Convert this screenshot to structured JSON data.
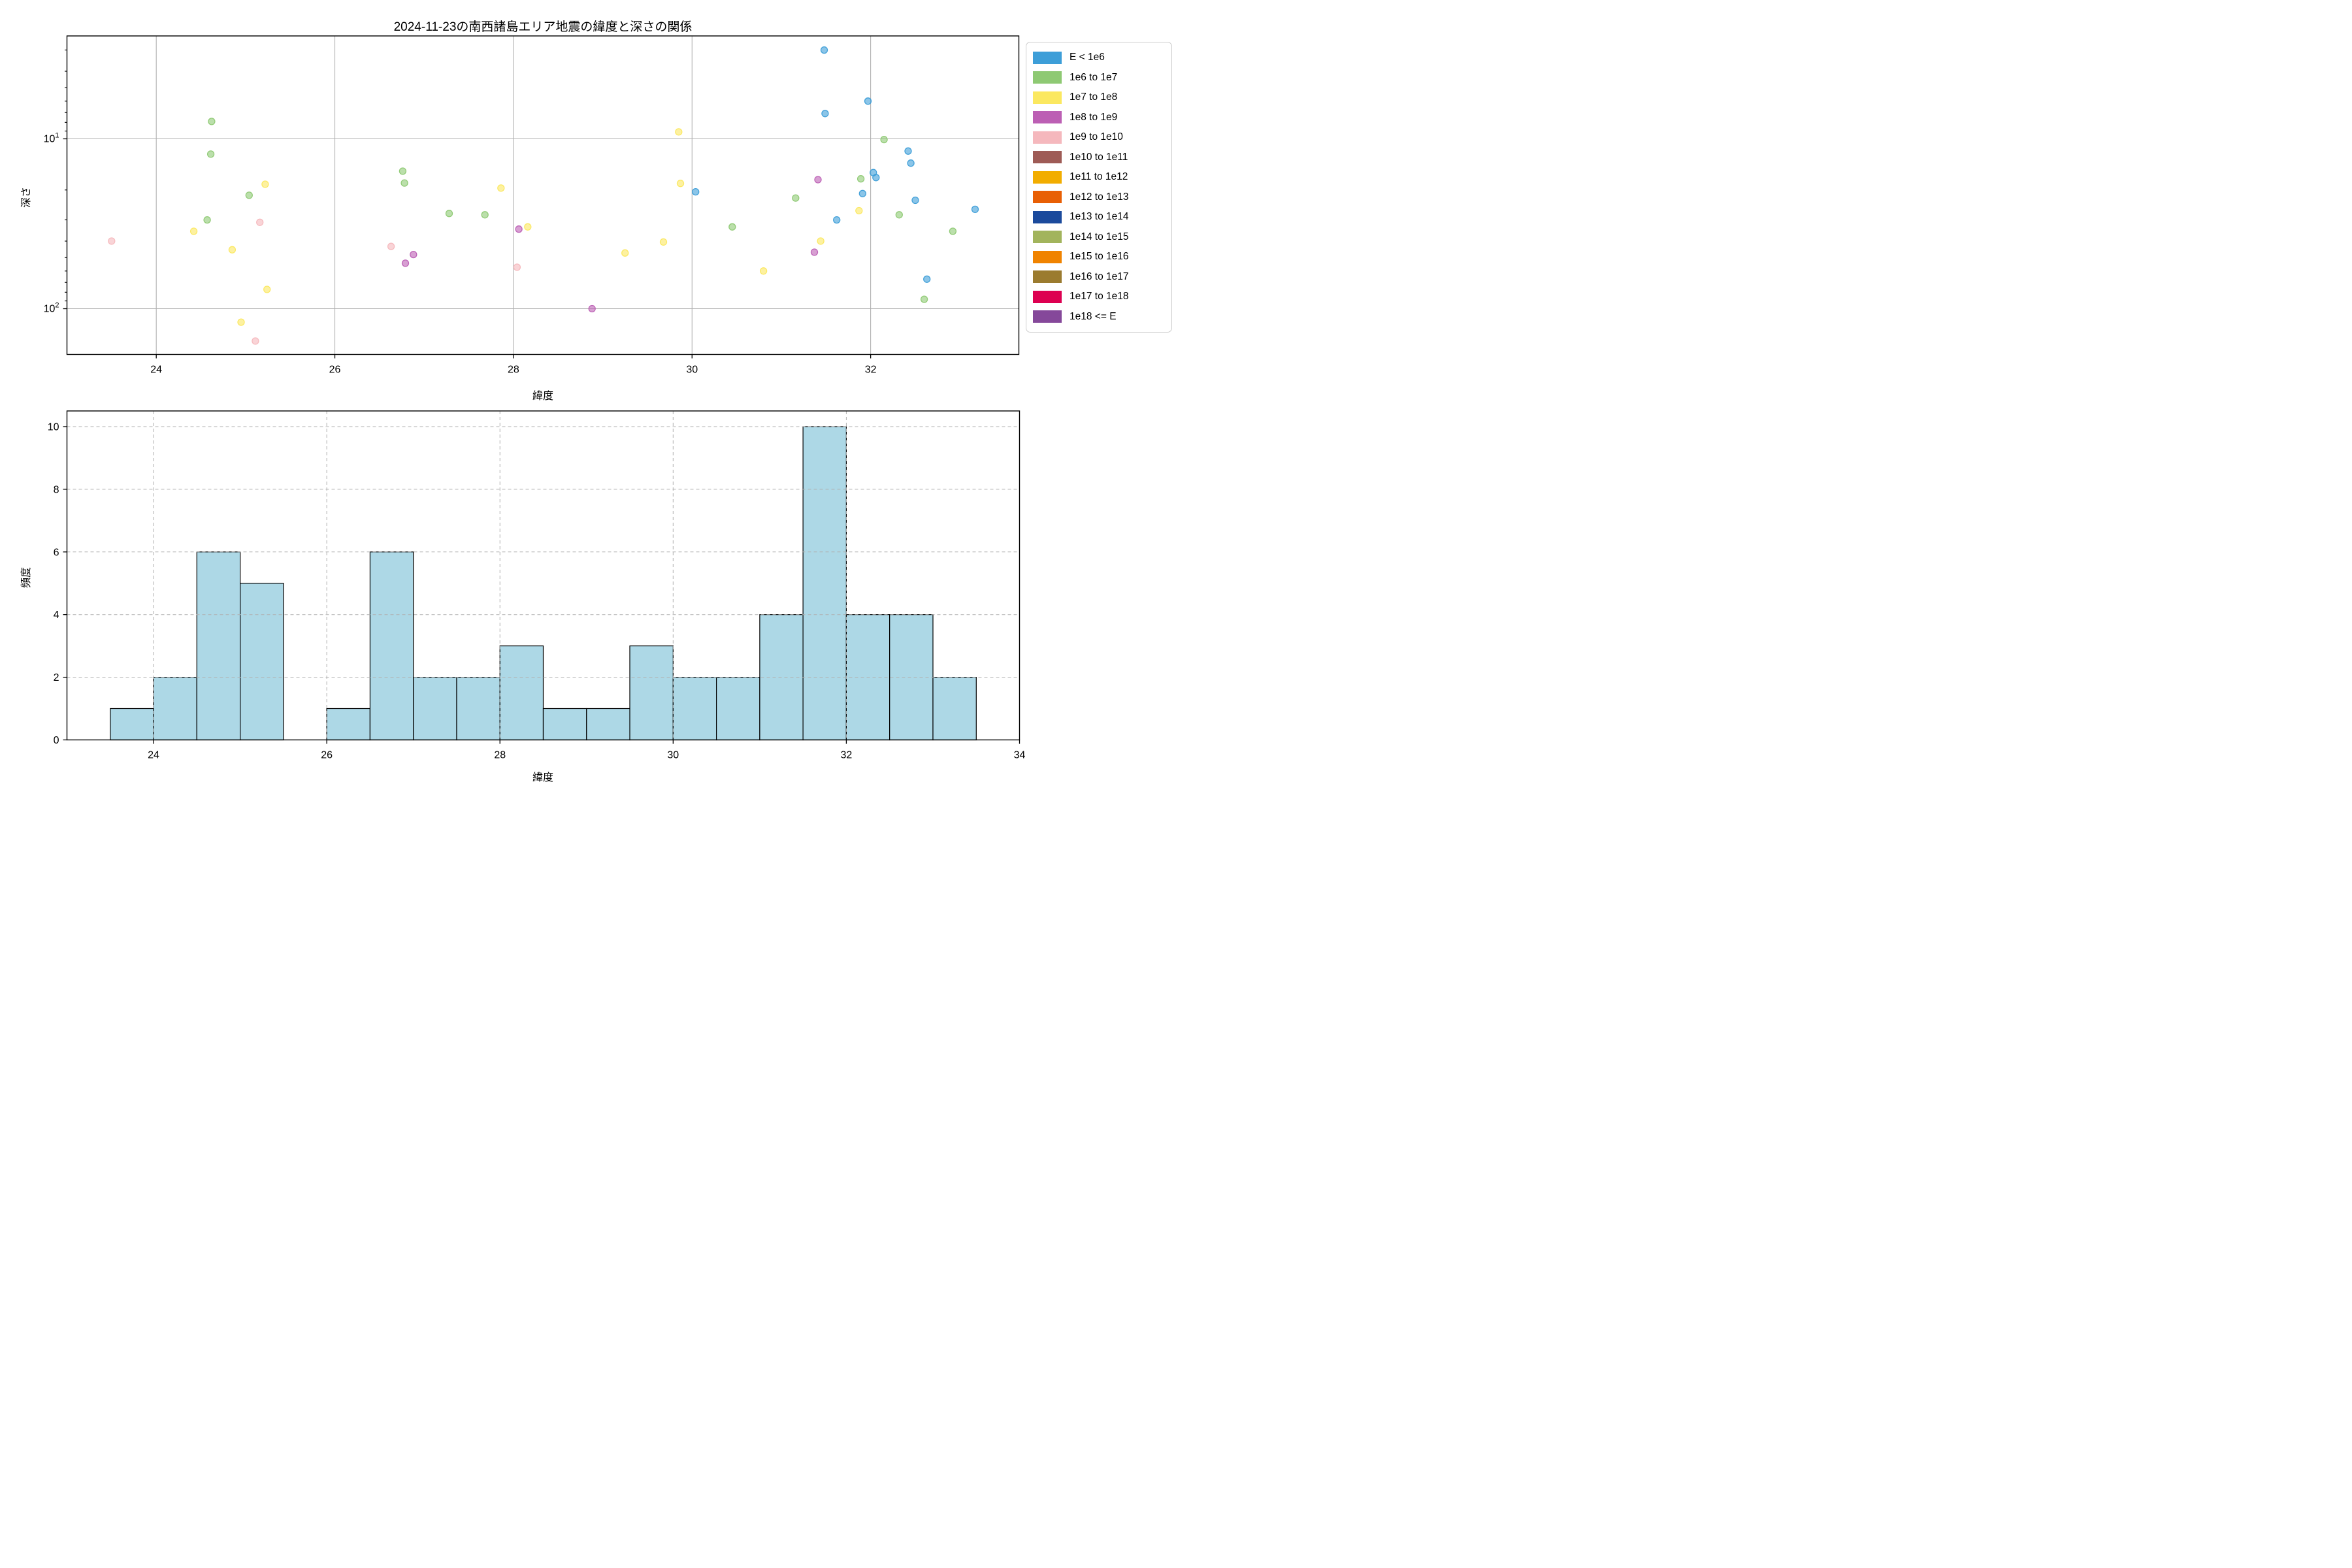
{
  "figure": {
    "title": "2024-11-23の南西諸島エリア地震の緯度と深さの関係",
    "background_color": "#ffffff",
    "grid_color": "#b0b0b0",
    "spine_color": "#000000"
  },
  "scatter_plot": {
    "xlabel": "緯度",
    "ylabel": "深さ",
    "x_ticks": [
      24,
      26,
      28,
      30,
      32
    ],
    "y_ticks": [
      10,
      100
    ],
    "y_minor_ticks": [
      3,
      4,
      5,
      6,
      7,
      8,
      9,
      20,
      30,
      40,
      50,
      60,
      70,
      80,
      90
    ],
    "xlim": [
      23.0,
      33.66
    ],
    "ylim_depth_top": 2.48,
    "ylim_depth_bottom": 185.8,
    "y_scale": "log-inverted",
    "grid_style": "solid"
  },
  "histogram": {
    "xlabel": "緯度",
    "ylabel": "頻度",
    "x_ticks": [
      24,
      26,
      28,
      30,
      32,
      34
    ],
    "y_ticks": [
      0,
      2,
      4,
      6,
      8,
      10
    ],
    "xlim": [
      23.0,
      34.0
    ],
    "ylim": [
      0,
      10.5
    ],
    "bar_fill": "#add8e6",
    "bar_edge": "#000000",
    "grid_style": "dashed"
  },
  "legend": {
    "entries": [
      {
        "label": "E < 1e6",
        "color": "#3d9ed8"
      },
      {
        "label": "1e6 to 1e7",
        "color": "#8ec973"
      },
      {
        "label": "1e7 to 1e8",
        "color": "#fbe860"
      },
      {
        "label": "1e8 to 1e9",
        "color": "#bc5fb4"
      },
      {
        "label": "1e9 to 1e10",
        "color": "#f5b8bd"
      },
      {
        "label": "1e10 to 1e11",
        "color": "#9e5b56"
      },
      {
        "label": "1e11 to 1e12",
        "color": "#f2ad00"
      },
      {
        "label": "1e12 to 1e13",
        "color": "#e85f04"
      },
      {
        "label": "1e13 to 1e14",
        "color": "#1b4a9c"
      },
      {
        "label": "1e14 to 1e15",
        "color": "#a2b45c"
      },
      {
        "label": "1e15 to 1e16",
        "color": "#f08300"
      },
      {
        "label": "1e16 to 1e17",
        "color": "#9b7b2f"
      },
      {
        "label": "1e17 to 1e18",
        "color": "#dd0051"
      },
      {
        "label": "1e18 <= E",
        "color": "#85489a"
      }
    ]
  },
  "chart_data": [
    {
      "type": "scatter",
      "title": "2024-11-23の南西諸島エリア地震の緯度と深さの関係",
      "xlabel": "緯度",
      "ylabel": "深さ",
      "x_axis": {
        "range": [
          23.0,
          33.66
        ],
        "ticks": [
          24,
          26,
          28,
          30,
          32
        ]
      },
      "y_axis": {
        "scale": "log",
        "inverted": true,
        "range": [
          2.48,
          185.8
        ],
        "ticks": [
          10,
          100
        ]
      },
      "legend_position": "outside-right-top",
      "series_key_classes": [
        "E < 1e6",
        "1e6 to 1e7",
        "1e7 to 1e8",
        "1e8 to 1e9",
        "1e9 to 1e10"
      ],
      "points_format": [
        "latitude",
        "depth_km",
        "energy_class_index"
      ],
      "points": [
        [
          23.5,
          40,
          4
        ],
        [
          24.62,
          7.9,
          1
        ],
        [
          24.61,
          12.3,
          1
        ],
        [
          24.57,
          30,
          1
        ],
        [
          25.04,
          21.5,
          1
        ],
        [
          25.22,
          18.5,
          2
        ],
        [
          24.85,
          45,
          2
        ],
        [
          24.42,
          35,
          2
        ],
        [
          25.16,
          31,
          4
        ],
        [
          25.24,
          77,
          2
        ],
        [
          24.95,
          120,
          2
        ],
        [
          25.11,
          155,
          4
        ],
        [
          26.63,
          43,
          4
        ],
        [
          26.76,
          15.5,
          1
        ],
        [
          26.78,
          18.2,
          1
        ],
        [
          26.88,
          48,
          3
        ],
        [
          26.79,
          54,
          3
        ],
        [
          27.28,
          27.5,
          1
        ],
        [
          27.68,
          28,
          1
        ],
        [
          27.86,
          19.5,
          2
        ],
        [
          28.06,
          34,
          3
        ],
        [
          28.16,
          33,
          2
        ],
        [
          28.04,
          57,
          4
        ],
        [
          28.88,
          100,
          3
        ],
        [
          29.85,
          9.1,
          2
        ],
        [
          29.87,
          18.3,
          2
        ],
        [
          30.04,
          20.5,
          0
        ],
        [
          29.68,
          40.5,
          2
        ],
        [
          29.25,
          47,
          2
        ],
        [
          30.45,
          33,
          1
        ],
        [
          30.8,
          60,
          2
        ],
        [
          31.16,
          22.3,
          1
        ],
        [
          31.41,
          17.4,
          3
        ],
        [
          31.44,
          40,
          2
        ],
        [
          31.37,
          46.5,
          3
        ],
        [
          31.48,
          3.0,
          0
        ],
        [
          31.49,
          7.1,
          0
        ],
        [
          31.62,
          30,
          0
        ],
        [
          31.97,
          6.0,
          0
        ],
        [
          32.15,
          10.1,
          1
        ],
        [
          32.03,
          15.8,
          0
        ],
        [
          32.06,
          16.9,
          0
        ],
        [
          31.89,
          17.2,
          1
        ],
        [
          31.91,
          21.0,
          0
        ],
        [
          31.87,
          26.5,
          2
        ],
        [
          32.5,
          23,
          0
        ],
        [
          32.32,
          28,
          1
        ],
        [
          32.42,
          11.8,
          0
        ],
        [
          32.45,
          13.9,
          0
        ],
        [
          33.17,
          26,
          0
        ],
        [
          32.92,
          35,
          1
        ],
        [
          32.63,
          67,
          0
        ],
        [
          32.6,
          88,
          1
        ]
      ]
    },
    {
      "type": "bar",
      "subtype": "histogram",
      "xlabel": "緯度",
      "ylabel": "頻度",
      "bin_start": 23.5,
      "bin_width": 0.5,
      "values": [
        1,
        2,
        6,
        5,
        0,
        1,
        6,
        2,
        2,
        3,
        1,
        1,
        3,
        2,
        2,
        4,
        10,
        4,
        4,
        2
      ],
      "x_axis": {
        "range": [
          23.0,
          34.0
        ],
        "ticks": [
          24,
          26,
          28,
          30,
          32,
          34
        ]
      },
      "y_axis": {
        "range": [
          0,
          10.5
        ],
        "ticks": [
          0,
          2,
          4,
          6,
          8,
          10
        ]
      },
      "grid": "dashed"
    }
  ]
}
